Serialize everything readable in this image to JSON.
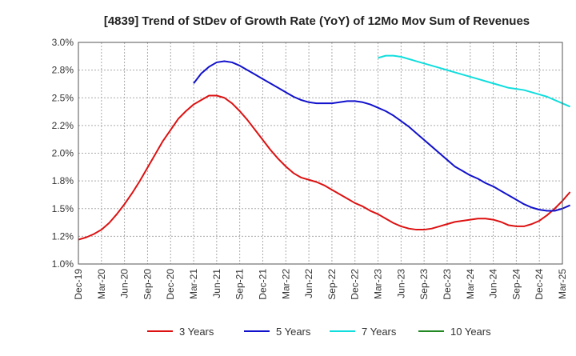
{
  "chart_data": {
    "type": "line",
    "title": "[4839]  Trend of StDev of Growth Rate (YoY) of 12Mo Mov Sum of Revenues",
    "xlabel": "",
    "ylabel": "",
    "ylim": [
      1.0,
      3.0
    ],
    "yticks": [
      "3.0%",
      "2.8%",
      "2.5%",
      "2.2%",
      "2.0%",
      "1.8%",
      "1.5%",
      "1.2%",
      "1.0%"
    ],
    "ytick_values": [
      3.0,
      2.75,
      2.5,
      2.25,
      2.0,
      1.75,
      1.5,
      1.25,
      1.0
    ],
    "x_categories": [
      "Dec-19",
      "Mar-20",
      "Jun-20",
      "Sep-20",
      "Dec-20",
      "Mar-21",
      "Jun-21",
      "Sep-21",
      "Dec-21",
      "Mar-22",
      "Jun-22",
      "Sep-22",
      "Dec-22",
      "Mar-23",
      "Jun-23",
      "Sep-23",
      "Dec-23",
      "Mar-24",
      "Jun-24",
      "Sep-24",
      "Dec-24",
      "Mar-25"
    ],
    "x_index_unit": "months since Dec-19",
    "grid": true,
    "legend_position": "bottom",
    "series": [
      {
        "name": "3 Years",
        "color": "#dd1111",
        "points": [
          [
            0,
            1.22
          ],
          [
            1,
            1.24
          ],
          [
            2,
            1.27
          ],
          [
            3,
            1.31
          ],
          [
            4,
            1.37
          ],
          [
            5,
            1.45
          ],
          [
            6,
            1.54
          ],
          [
            7,
            1.64
          ],
          [
            8,
            1.75
          ],
          [
            9,
            1.87
          ],
          [
            10,
            1.99
          ],
          [
            11,
            2.11
          ],
          [
            12,
            2.21
          ],
          [
            13,
            2.31
          ],
          [
            14,
            2.38
          ],
          [
            15,
            2.44
          ],
          [
            16,
            2.48
          ],
          [
            17,
            2.52
          ],
          [
            18,
            2.52
          ],
          [
            19,
            2.5
          ],
          [
            20,
            2.45
          ],
          [
            21,
            2.38
          ],
          [
            22,
            2.3
          ],
          [
            23,
            2.21
          ],
          [
            24,
            2.12
          ],
          [
            25,
            2.03
          ],
          [
            26,
            1.95
          ],
          [
            27,
            1.88
          ],
          [
            28,
            1.82
          ],
          [
            29,
            1.78
          ],
          [
            30,
            1.76
          ],
          [
            31,
            1.74
          ],
          [
            32,
            1.71
          ],
          [
            33,
            1.67
          ],
          [
            34,
            1.63
          ],
          [
            35,
            1.59
          ],
          [
            36,
            1.55
          ],
          [
            37,
            1.52
          ],
          [
            38,
            1.48
          ],
          [
            39,
            1.45
          ],
          [
            40,
            1.41
          ],
          [
            41,
            1.37
          ],
          [
            42,
            1.34
          ],
          [
            43,
            1.32
          ],
          [
            44,
            1.31
          ],
          [
            45,
            1.31
          ],
          [
            46,
            1.32
          ],
          [
            47,
            1.34
          ],
          [
            48,
            1.36
          ],
          [
            49,
            1.38
          ],
          [
            50,
            1.39
          ],
          [
            51,
            1.4
          ],
          [
            52,
            1.41
          ],
          [
            53,
            1.41
          ],
          [
            54,
            1.4
          ],
          [
            55,
            1.38
          ],
          [
            56,
            1.35
          ],
          [
            57,
            1.34
          ],
          [
            58,
            1.34
          ],
          [
            59,
            1.36
          ],
          [
            60,
            1.39
          ],
          [
            61,
            1.44
          ],
          [
            62,
            1.5
          ],
          [
            63,
            1.57
          ],
          [
            64,
            1.65
          ]
        ]
      },
      {
        "name": "5 Years",
        "color": "#1111cc",
        "points": [
          [
            15,
            2.63
          ],
          [
            16,
            2.72
          ],
          [
            17,
            2.78
          ],
          [
            18,
            2.82
          ],
          [
            19,
            2.83
          ],
          [
            20,
            2.82
          ],
          [
            21,
            2.79
          ],
          [
            22,
            2.75
          ],
          [
            23,
            2.71
          ],
          [
            24,
            2.67
          ],
          [
            25,
            2.63
          ],
          [
            26,
            2.59
          ],
          [
            27,
            2.55
          ],
          [
            28,
            2.51
          ],
          [
            29,
            2.48
          ],
          [
            30,
            2.46
          ],
          [
            31,
            2.45
          ],
          [
            32,
            2.45
          ],
          [
            33,
            2.45
          ],
          [
            34,
            2.46
          ],
          [
            35,
            2.47
          ],
          [
            36,
            2.47
          ],
          [
            37,
            2.46
          ],
          [
            38,
            2.44
          ],
          [
            39,
            2.41
          ],
          [
            40,
            2.38
          ],
          [
            41,
            2.34
          ],
          [
            42,
            2.29
          ],
          [
            43,
            2.24
          ],
          [
            44,
            2.18
          ],
          [
            45,
            2.12
          ],
          [
            46,
            2.06
          ],
          [
            47,
            2.0
          ],
          [
            48,
            1.94
          ],
          [
            49,
            1.88
          ],
          [
            50,
            1.84
          ],
          [
            51,
            1.8
          ],
          [
            52,
            1.77
          ],
          [
            53,
            1.73
          ],
          [
            54,
            1.7
          ],
          [
            55,
            1.66
          ],
          [
            56,
            1.62
          ],
          [
            57,
            1.58
          ],
          [
            58,
            1.54
          ],
          [
            59,
            1.51
          ],
          [
            60,
            1.49
          ],
          [
            61,
            1.48
          ],
          [
            62,
            1.48
          ],
          [
            63,
            1.5
          ],
          [
            64,
            1.53
          ]
        ]
      },
      {
        "name": "7 Years",
        "color": "#11dddd",
        "points": [
          [
            39,
            2.86
          ],
          [
            40,
            2.88
          ],
          [
            41,
            2.88
          ],
          [
            42,
            2.87
          ],
          [
            43,
            2.85
          ],
          [
            44,
            2.83
          ],
          [
            45,
            2.81
          ],
          [
            46,
            2.79
          ],
          [
            47,
            2.77
          ],
          [
            48,
            2.75
          ],
          [
            49,
            2.73
          ],
          [
            50,
            2.71
          ],
          [
            51,
            2.69
          ],
          [
            52,
            2.67
          ],
          [
            53,
            2.65
          ],
          [
            54,
            2.63
          ],
          [
            55,
            2.61
          ],
          [
            56,
            2.59
          ],
          [
            57,
            2.58
          ],
          [
            58,
            2.57
          ],
          [
            59,
            2.55
          ],
          [
            60,
            2.53
          ],
          [
            61,
            2.51
          ],
          [
            62,
            2.48
          ],
          [
            63,
            2.45
          ],
          [
            64,
            2.42
          ]
        ]
      },
      {
        "name": "10 Years",
        "color": "#228822",
        "points": []
      }
    ]
  }
}
